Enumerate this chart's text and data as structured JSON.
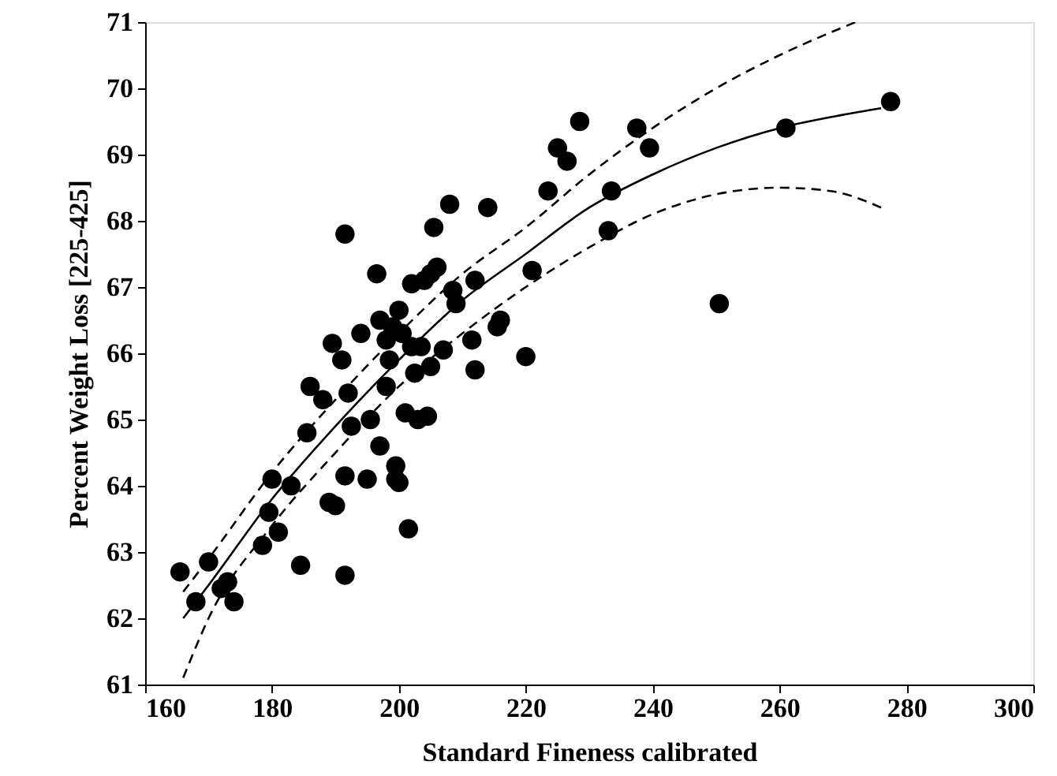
{
  "chart_data": {
    "type": "scatter",
    "xlabel": "Standard Fineness calibrated",
    "ylabel": "Percent Weight Loss [225-425]",
    "xlim": [
      160,
      300
    ],
    "xticks": [
      160,
      180,
      200,
      220,
      240,
      260,
      280,
      300
    ],
    "ylim": [
      61,
      71
    ],
    "yticks": [
      61,
      62,
      63,
      64,
      65,
      66,
      67,
      68,
      69,
      70,
      71
    ],
    "grid": false,
    "series": [
      {
        "type": "scatter",
        "color": "#000000",
        "marker": "circle",
        "x": [
          165.5,
          168,
          170,
          172,
          173,
          174,
          178.5,
          179.5,
          180,
          181,
          183,
          184.5,
          185.5,
          186,
          188,
          189,
          189.5,
          190,
          191,
          191.5,
          191.5,
          191.5,
          192,
          192.5,
          194,
          195,
          195.5,
          196.5,
          197,
          197,
          198,
          198,
          198.5,
          199,
          199.5,
          199.5,
          200,
          200,
          200.5,
          201,
          201.5,
          202,
          202,
          202.5,
          203,
          203.5,
          204,
          204.5,
          205,
          205,
          205.5,
          206,
          207,
          208,
          208.5,
          209,
          211.5,
          212,
          212,
          214,
          215.5,
          216,
          220,
          221,
          223.5,
          225,
          226.5,
          228.5,
          233,
          233.5,
          237.5,
          239.5,
          250.5,
          261,
          277.5
        ],
        "values": [
          62.7,
          62.25,
          62.85,
          62.45,
          62.55,
          62.25,
          63.1,
          63.6,
          64.1,
          63.3,
          64.0,
          62.8,
          64.8,
          65.5,
          65.3,
          63.75,
          66.15,
          63.7,
          65.9,
          64.15,
          62.65,
          67.8,
          65.4,
          64.9,
          66.3,
          64.1,
          65.0,
          67.2,
          66.5,
          64.6,
          65.5,
          66.2,
          65.9,
          66.4,
          64.3,
          64.1,
          64.05,
          66.65,
          66.3,
          65.1,
          63.35,
          66.1,
          67.05,
          65.7,
          65.0,
          66.1,
          67.1,
          65.05,
          67.2,
          65.8,
          67.9,
          67.3,
          66.05,
          68.25,
          66.95,
          66.75,
          66.2,
          67.1,
          65.75,
          68.2,
          66.4,
          66.5,
          65.95,
          67.25,
          68.45,
          69.1,
          68.9,
          69.5,
          67.85,
          68.45,
          69.4,
          69.1,
          66.75,
          69.4,
          69.8
        ]
      },
      {
        "type": "line",
        "color": "#000000",
        "line_style": "solid",
        "x": [
          166,
          170,
          180,
          190,
          200,
          210,
          220,
          230,
          240,
          250,
          260,
          270,
          276
        ],
        "values": [
          62.0,
          62.5,
          63.8,
          64.9,
          65.9,
          66.8,
          67.5,
          68.2,
          68.7,
          69.1,
          69.4,
          69.6,
          69.7
        ]
      },
      {
        "type": "line",
        "color": "#000000",
        "line_style": "dashed",
        "x": [
          166,
          170,
          180,
          190,
          200,
          210,
          220,
          230,
          240,
          250,
          260,
          272
        ],
        "values": [
          62.4,
          62.9,
          64.2,
          65.3,
          66.3,
          67.2,
          67.9,
          68.7,
          69.4,
          70.0,
          70.5,
          71.0
        ]
      },
      {
        "type": "line",
        "color": "#000000",
        "line_style": "dashed",
        "x": [
          166,
          170,
          180,
          190,
          200,
          210,
          220,
          230,
          240,
          250,
          260,
          268,
          276
        ],
        "values": [
          61.1,
          62.0,
          63.4,
          64.5,
          65.5,
          66.3,
          67.0,
          67.6,
          68.1,
          68.4,
          68.5,
          68.45,
          68.2
        ]
      }
    ]
  }
}
